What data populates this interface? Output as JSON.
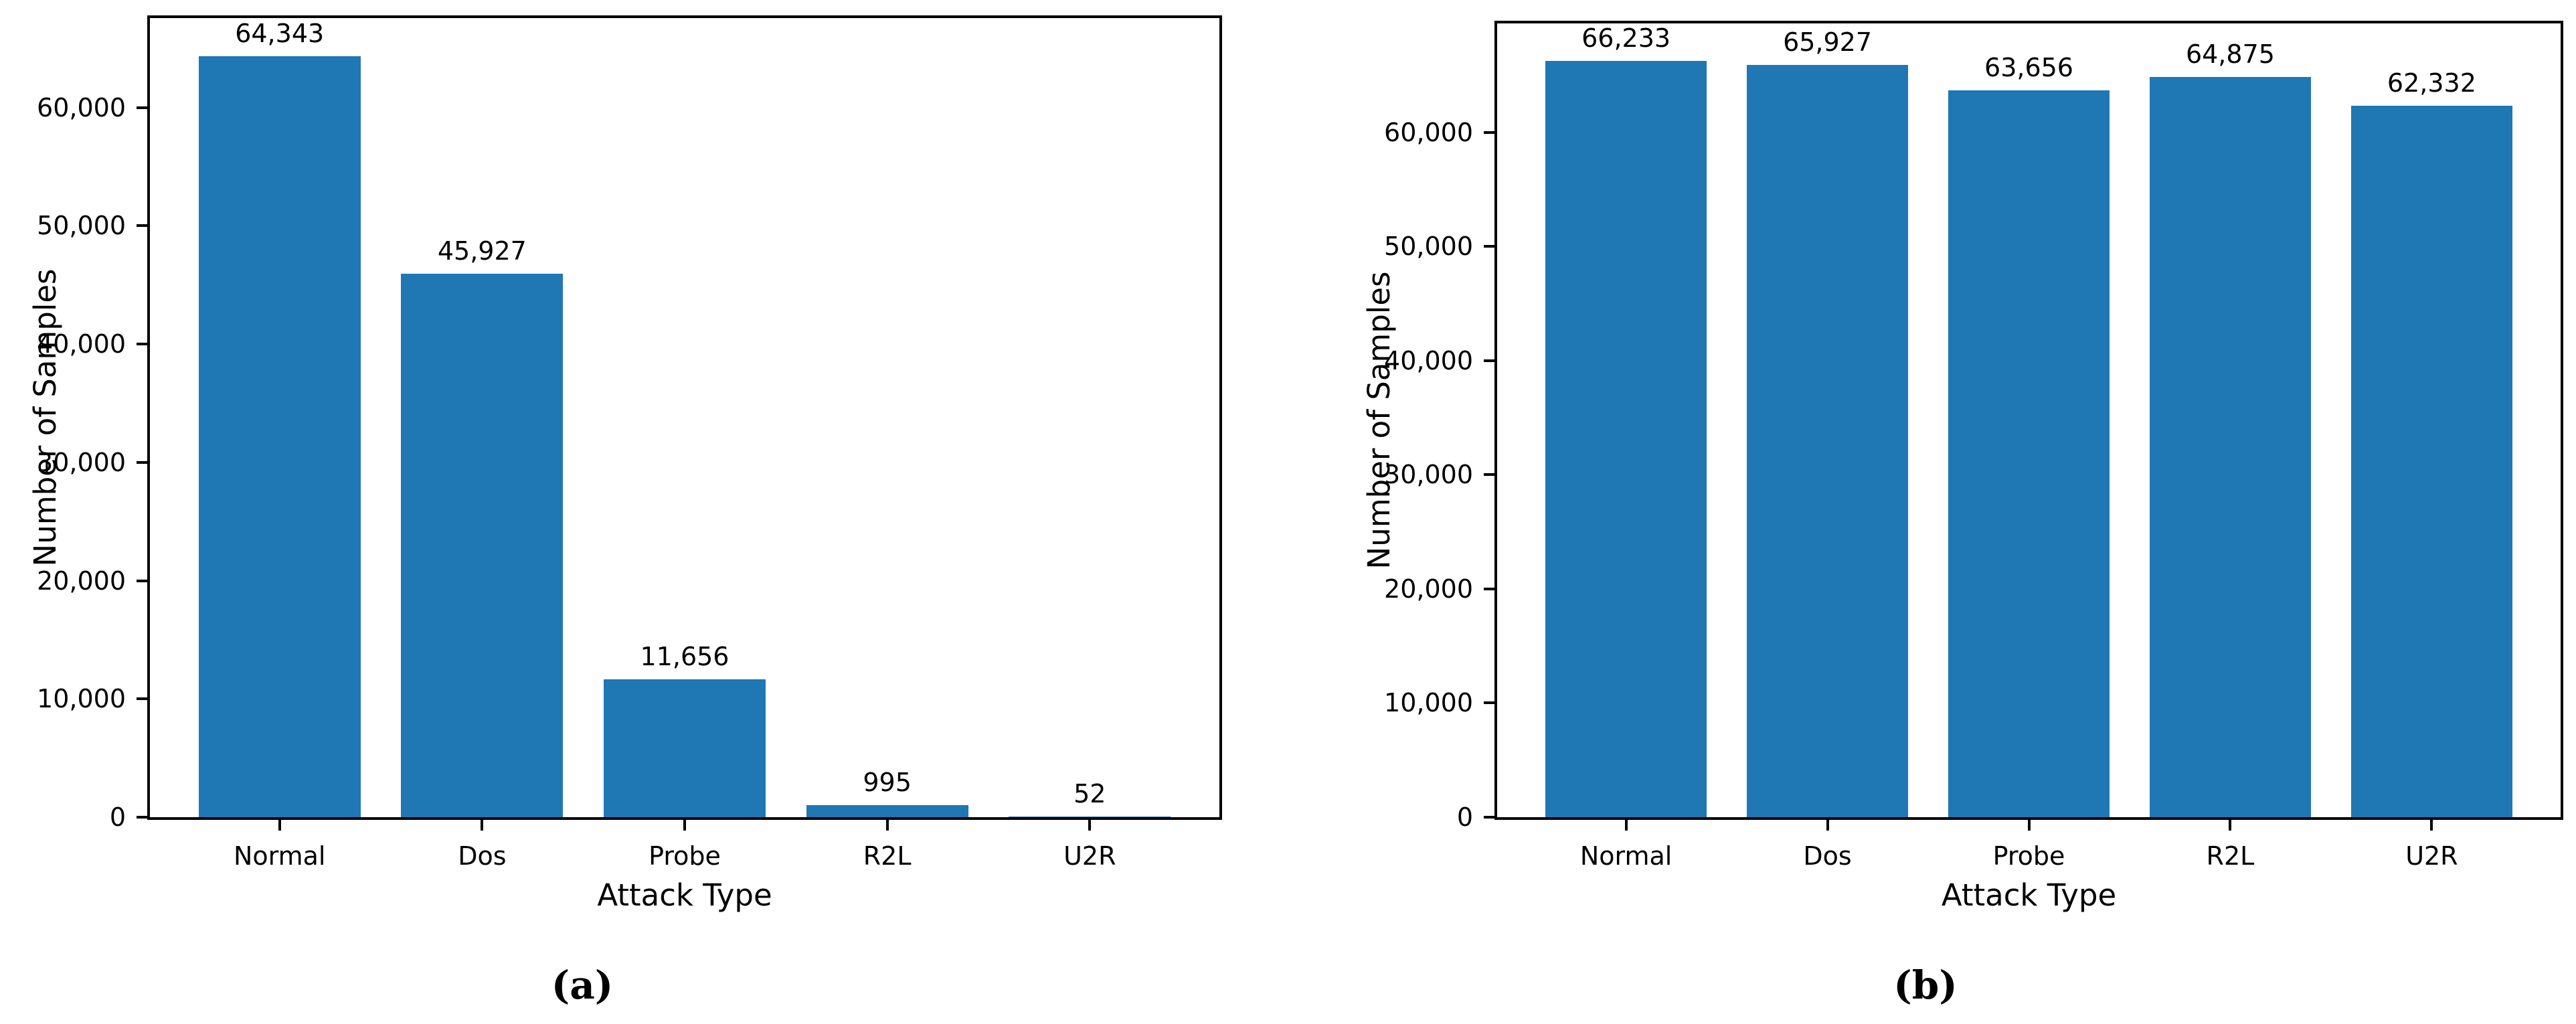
{
  "figure": {
    "captions": [
      {
        "id": "a",
        "label": "(a)"
      },
      {
        "id": "b",
        "label": "(b)"
      }
    ]
  },
  "colors": {
    "bar": "#1f77b4",
    "axis": "#000000",
    "background": "#ffffff"
  },
  "chart_data": [
    {
      "id": "a",
      "type": "bar",
      "title": "",
      "xlabel": "Attack Type",
      "ylabel": "Number of Samples",
      "categories": [
        "Normal",
        "Dos",
        "Probe",
        "R2L",
        "U2R"
      ],
      "values": [
        64343,
        45927,
        11656,
        995,
        52
      ],
      "value_labels": [
        "64,343",
        "45,927",
        "11,656",
        "995",
        "52"
      ],
      "bar_color": "#1f77b4",
      "ylim": [
        0,
        67560
      ],
      "yticks": [
        0,
        10000,
        20000,
        30000,
        40000,
        50000,
        60000
      ],
      "ytick_labels": [
        "0",
        "10,000",
        "20,000",
        "30,000",
        "40,000",
        "50,000",
        "60,000"
      ],
      "grid": false,
      "legend_position": "none"
    },
    {
      "id": "b",
      "type": "bar",
      "title": "",
      "xlabel": "Attack Type",
      "ylabel": "Number of Samples",
      "categories": [
        "Normal",
        "Dos",
        "Probe",
        "R2L",
        "U2R"
      ],
      "values": [
        66233,
        65927,
        63656,
        64875,
        62332
      ],
      "value_labels": [
        "66,233",
        "65,927",
        "63,656",
        "64,875",
        "62,332"
      ],
      "bar_color": "#1f77b4",
      "ylim": [
        0,
        69545
      ],
      "yticks": [
        0,
        10000,
        20000,
        30000,
        40000,
        50000,
        60000
      ],
      "ytick_labels": [
        "0",
        "10,000",
        "20,000",
        "30,000",
        "40,000",
        "50,000",
        "60,000"
      ],
      "grid": false,
      "legend_position": "none"
    }
  ]
}
